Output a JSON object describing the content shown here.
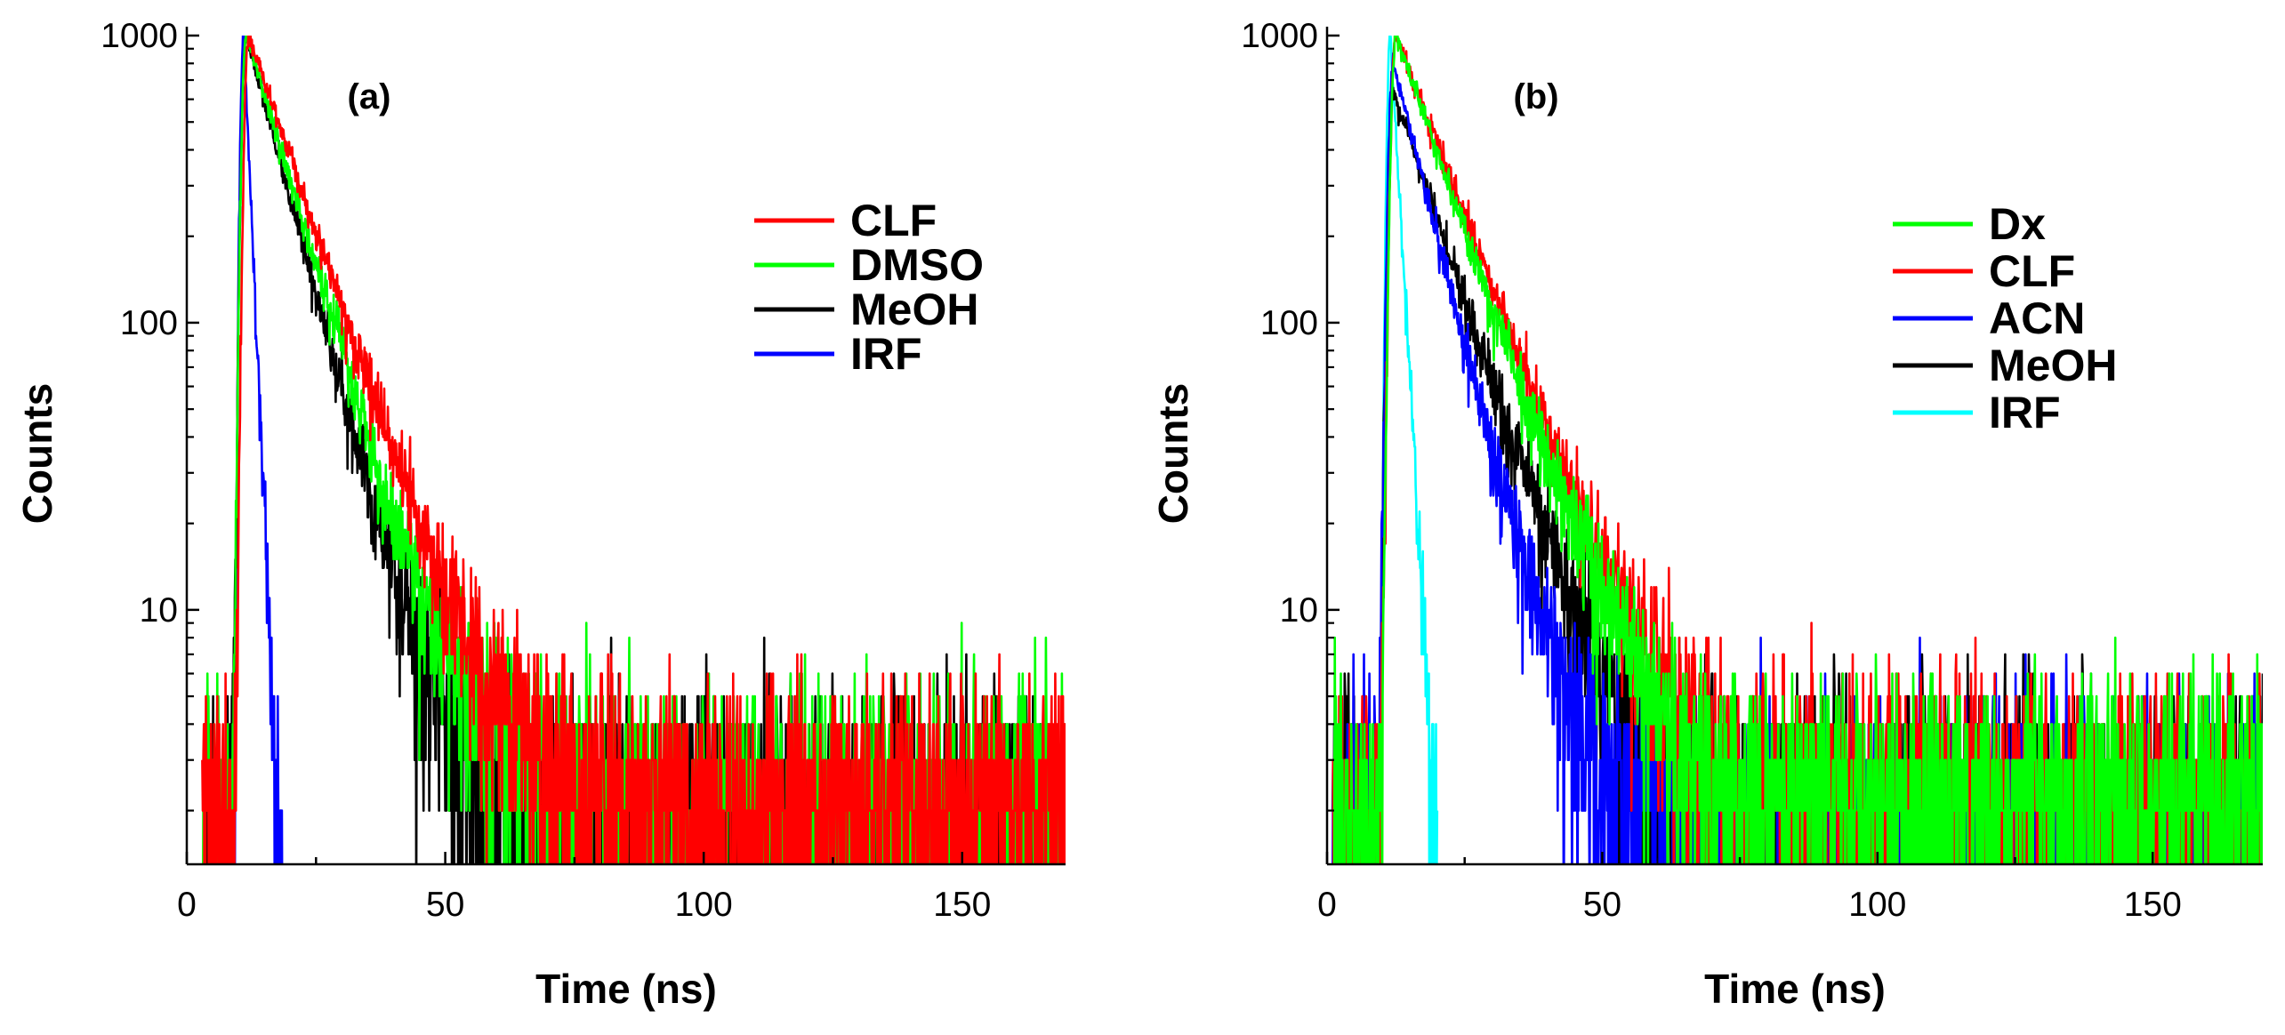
{
  "chart_data": [
    {
      "type": "line",
      "panel_label": "(a)",
      "xlabel": "Time (ns)",
      "ylabel": "Counts",
      "yscale": "log",
      "xlim": [
        0,
        170
      ],
      "ylim": [
        1.3,
        1000
      ],
      "xticks": [
        0,
        50,
        100,
        150
      ],
      "yticks": [
        10,
        100,
        1000
      ],
      "legend_position": "upper-right",
      "series": [
        {
          "name": "CLF",
          "color": "#ff0000",
          "peak_x": 12,
          "peak": 1000,
          "tau": 8.2,
          "rise_sigma": 0.7,
          "baseline": 2.2,
          "noise": 1.0,
          "start_x": 3,
          "seed": 11
        },
        {
          "name": "DMSO",
          "color": "#00ff00",
          "peak_x": 11.5,
          "peak": 1000,
          "tau": 7.3,
          "rise_sigma": 0.7,
          "baseline": 2.2,
          "noise": 1.0,
          "start_x": 3,
          "seed": 23
        },
        {
          "name": "MeOH",
          "color": "#000000",
          "peak_x": 11.5,
          "peak": 1000,
          "tau": 6.5,
          "rise_sigma": 0.7,
          "baseline": 2.0,
          "noise": 0.9,
          "start_x": 3,
          "seed": 37
        },
        {
          "name": "IRF",
          "color": "#0000ff",
          "peak_x": 11,
          "peak": 1000,
          "tau": 1.05,
          "rise_sigma": 0.5,
          "baseline": 0,
          "noise": 0.5,
          "start_x": 9,
          "end_x": 20,
          "seed": 41
        }
      ]
    },
    {
      "type": "line",
      "panel_label": "(b)",
      "xlabel": "Time (ns)",
      "ylabel": "Counts",
      "yscale": "log",
      "xlim": [
        0,
        170
      ],
      "ylim": [
        1.3,
        1000
      ],
      "xticks": [
        0,
        50,
        100,
        150
      ],
      "yticks": [
        10,
        100,
        1000
      ],
      "legend_position": "upper-right",
      "series": [
        {
          "name": "Dx",
          "color": "#00ff00",
          "peak_x": 12.5,
          "peak": 1000,
          "tau": 8.0,
          "rise_sigma": 0.7,
          "baseline": 2.2,
          "noise": 1.0,
          "start_x": 1,
          "seed": 53
        },
        {
          "name": "CLF",
          "color": "#ff0000",
          "peak_x": 12.5,
          "peak": 1000,
          "tau": 8.6,
          "rise_sigma": 0.7,
          "baseline": 2.2,
          "noise": 1.1,
          "start_x": 1,
          "seed": 67
        },
        {
          "name": "ACN",
          "color": "#0000ff",
          "peak_x": 12,
          "peak": 800,
          "tau": 5.8,
          "rise_sigma": 0.7,
          "baseline": 1.9,
          "noise": 0.9,
          "start_x": 1,
          "seed": 71
        },
        {
          "name": "MeOH",
          "color": "#000000",
          "peak_x": 12,
          "peak": 650,
          "tau": 7.6,
          "rise_sigma": 0.7,
          "baseline": 2.0,
          "noise": 0.9,
          "start_x": 1,
          "seed": 83
        },
        {
          "name": "IRF",
          "color": "#00ffff",
          "peak_x": 11.5,
          "peak": 1000,
          "tau": 1.3,
          "rise_sigma": 0.5,
          "baseline": 0,
          "noise": 0.5,
          "start_x": 9,
          "end_x": 20,
          "seed": 97
        }
      ]
    }
  ]
}
